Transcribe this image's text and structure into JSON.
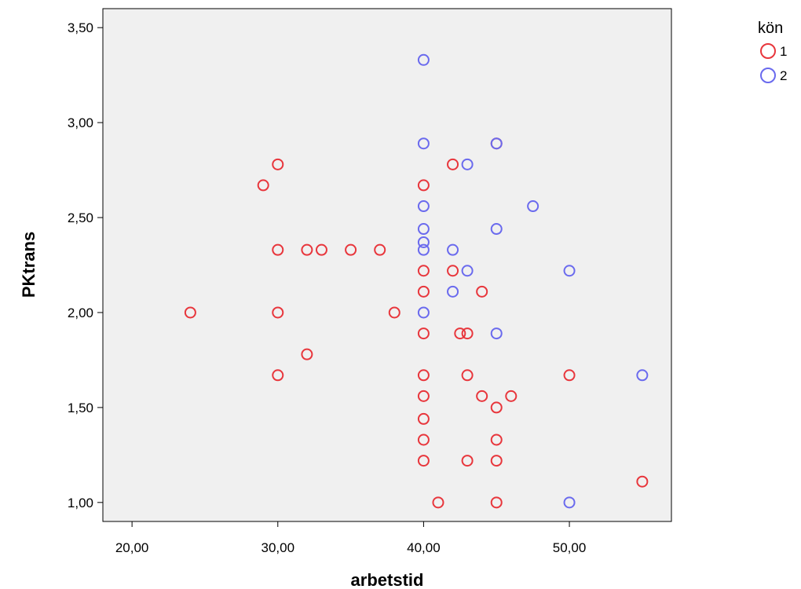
{
  "chart_data": {
    "type": "scatter",
    "xlabel": "arbetstid",
    "ylabel": "PKtrans",
    "xlim": [
      18,
      57
    ],
    "ylim": [
      0.9,
      3.6
    ],
    "xticks": [
      20,
      30,
      40,
      50
    ],
    "yticks": [
      1.0,
      1.5,
      2.0,
      2.5,
      3.0,
      3.5
    ],
    "xtick_labels": [
      "20,00",
      "30,00",
      "40,00",
      "50,00"
    ],
    "ytick_labels": [
      "1,00",
      "1,50",
      "2,00",
      "2,50",
      "3,00",
      "3,50"
    ],
    "grid": false,
    "background": "#f0f0f0",
    "legend": {
      "title": "kön",
      "position": "top-right"
    },
    "series": [
      {
        "name": "1",
        "color": "#e8363c",
        "points": [
          [
            24,
            2.0
          ],
          [
            29,
            2.67
          ],
          [
            30,
            2.78
          ],
          [
            30,
            2.33
          ],
          [
            30,
            2.0
          ],
          [
            30,
            1.67
          ],
          [
            32,
            2.33
          ],
          [
            32,
            1.78
          ],
          [
            33,
            2.33
          ],
          [
            35,
            2.33
          ],
          [
            37,
            2.33
          ],
          [
            38,
            2.0
          ],
          [
            40,
            2.67
          ],
          [
            40,
            2.22
          ],
          [
            40,
            2.11
          ],
          [
            40,
            1.89
          ],
          [
            40,
            1.67
          ],
          [
            40,
            1.56
          ],
          [
            40,
            1.44
          ],
          [
            40,
            1.33
          ],
          [
            40,
            1.22
          ],
          [
            41,
            1.0
          ],
          [
            42,
            2.78
          ],
          [
            42,
            2.22
          ],
          [
            42.5,
            1.89
          ],
          [
            43,
            1.89
          ],
          [
            43,
            1.67
          ],
          [
            43,
            1.22
          ],
          [
            44,
            2.11
          ],
          [
            44,
            1.56
          ],
          [
            45,
            2.89
          ],
          [
            45,
            1.5
          ],
          [
            45,
            1.33
          ],
          [
            45,
            1.22
          ],
          [
            45,
            1.0
          ],
          [
            46,
            1.56
          ],
          [
            50,
            1.67
          ],
          [
            55,
            1.11
          ]
        ]
      },
      {
        "name": "2",
        "color": "#6a6aee",
        "points": [
          [
            40,
            3.33
          ],
          [
            40,
            2.89
          ],
          [
            40,
            2.56
          ],
          [
            40,
            2.44
          ],
          [
            40,
            2.37
          ],
          [
            40,
            2.33
          ],
          [
            40,
            2.0
          ],
          [
            42,
            2.33
          ],
          [
            42,
            2.11
          ],
          [
            43,
            2.78
          ],
          [
            43,
            2.22
          ],
          [
            45,
            2.89
          ],
          [
            45,
            2.44
          ],
          [
            45,
            1.89
          ],
          [
            47.5,
            2.56
          ],
          [
            50,
            2.22
          ],
          [
            50,
            1.0
          ],
          [
            55,
            1.67
          ]
        ]
      }
    ]
  }
}
